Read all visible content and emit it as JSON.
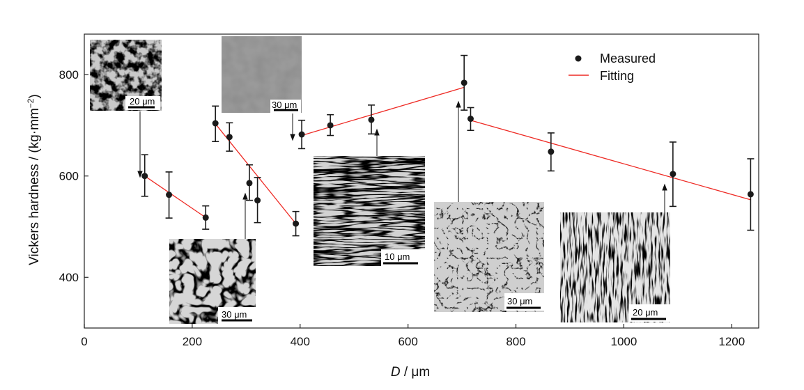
{
  "chart_data": {
    "type": "scatter",
    "xlabel_italic": "D",
    "xlabel_unit": " / μm",
    "ylabel": "Vickers hardness / (kg·mm",
    "ylabel_sup": "−2",
    "ylabel_close": ")",
    "xlim": [
      0,
      1250
    ],
    "ylim": [
      300,
      880
    ],
    "x_ticks": [
      0,
      200,
      400,
      600,
      800,
      1000,
      1200
    ],
    "y_ticks": [
      400,
      600,
      800
    ],
    "grid": false,
    "legend_position": "top-right",
    "series": [
      {
        "name": "Measured",
        "kind": "points-with-errorbars",
        "color": "#1a1a1a",
        "points": [
          {
            "x": 112,
            "y": 600,
            "lo": 560,
            "hi": 642
          },
          {
            "x": 157,
            "y": 563,
            "lo": 517,
            "hi": 608
          },
          {
            "x": 225,
            "y": 518,
            "lo": 495,
            "hi": 541
          },
          {
            "x": 243,
            "y": 704,
            "lo": 668,
            "hi": 738
          },
          {
            "x": 269,
            "y": 677,
            "lo": 649,
            "hi": 705
          },
          {
            "x": 306,
            "y": 586,
            "lo": 552,
            "hi": 622
          },
          {
            "x": 321,
            "y": 552,
            "lo": 508,
            "hi": 597
          },
          {
            "x": 392,
            "y": 506,
            "lo": 482,
            "hi": 530
          },
          {
            "x": 403,
            "y": 682,
            "lo": 654,
            "hi": 710
          },
          {
            "x": 456,
            "y": 700,
            "lo": 680,
            "hi": 721
          },
          {
            "x": 532,
            "y": 711,
            "lo": 683,
            "hi": 740
          },
          {
            "x": 704,
            "y": 784,
            "lo": 730,
            "hi": 838
          },
          {
            "x": 716,
            "y": 713,
            "lo": 690,
            "hi": 735
          },
          {
            "x": 865,
            "y": 648,
            "lo": 610,
            "hi": 685
          },
          {
            "x": 1091,
            "y": 604,
            "lo": 540,
            "hi": 667
          },
          {
            "x": 1235,
            "y": 564,
            "lo": 493,
            "hi": 634
          }
        ]
      },
      {
        "name": "Fitting",
        "kind": "segments",
        "color": "#ee2a24",
        "segments": [
          [
            [
              112,
              600
            ],
            [
              225,
              518
            ]
          ],
          [
            [
              243,
              703
            ],
            [
              392,
              506
            ]
          ],
          [
            [
              403,
              680
            ],
            [
              704,
              775
            ]
          ],
          [
            [
              716,
              710
            ],
            [
              1235,
              553
            ]
          ]
        ]
      }
    ],
    "insets": [
      {
        "id": "a",
        "scale_label": "20 μm",
        "arrow_to": {
          "x": 110,
          "y": 620
        }
      },
      {
        "id": "b",
        "scale_label": "30 μm",
        "arrow_to": {
          "x": 388,
          "y": 684
        }
      },
      {
        "id": "c",
        "scale_label": "30 μm",
        "arrow_to": {
          "x": 302,
          "y": 585
        }
      },
      {
        "id": "d",
        "scale_label": "10 μm",
        "arrow_to": {
          "x": 536,
          "y": 694
        }
      },
      {
        "id": "e",
        "scale_label": "30 μm",
        "arrow_to": {
          "x": 700,
          "y": 762
        }
      },
      {
        "id": "f",
        "scale_label": "20 μm",
        "arrow_to": {
          "x": 1076,
          "y": 593
        }
      }
    ]
  }
}
